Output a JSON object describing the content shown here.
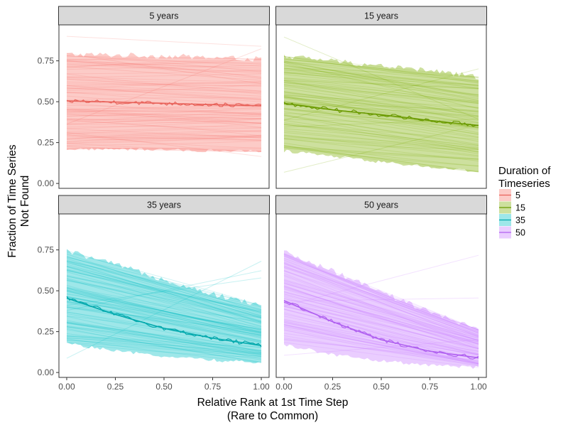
{
  "chart_data": {
    "type": "line",
    "facet_title_prefix": "Duration of Timeseries",
    "xlabel_line1": "Relative Rank at 1st Time Step",
    "xlabel_line2": "(Rare to Common)",
    "ylabel_line1": "Fraction of Time Series",
    "ylabel_line2": "Not Found",
    "legend_title_line1": "Duration of",
    "legend_title_line2": "Timeseries",
    "xlim": [
      -0.04,
      1.04
    ],
    "ylim": [
      -0.03,
      0.97
    ],
    "x_ticks": [
      0,
      0.25,
      0.5,
      0.75,
      1
    ],
    "x_tick_labels": [
      "0.00",
      "0.25",
      "0.50",
      "0.75",
      "1.00"
    ],
    "y_ticks": [
      0,
      0.25,
      0.5,
      0.75
    ],
    "y_tick_labels": [
      "0.00",
      "0.25",
      "0.50",
      "0.75"
    ],
    "grid": false,
    "legend_position": "right",
    "panels": [
      {
        "strip": "5 years",
        "legend_label": "5",
        "fill_color": "#F8766D",
        "line_color": "#E8625A",
        "x": [
          0,
          0.25,
          0.5,
          0.75,
          1
        ],
        "mean": [
          0.505,
          0.498,
          0.49,
          0.482,
          0.475
        ],
        "band_upper": [
          0.79,
          0.785,
          0.78,
          0.77,
          0.76
        ],
        "band_lower": [
          0.21,
          0.21,
          0.205,
          0.2,
          0.195
        ]
      },
      {
        "strip": "15 years",
        "legend_label": "15",
        "fill_color": "#7CAE00",
        "line_color": "#6A9A00",
        "x": [
          0,
          0.25,
          0.5,
          0.75,
          1
        ],
        "mean": [
          0.49,
          0.45,
          0.42,
          0.385,
          0.355
        ],
        "band_upper": [
          0.78,
          0.75,
          0.72,
          0.69,
          0.65
        ],
        "band_lower": [
          0.2,
          0.165,
          0.13,
          0.1,
          0.07
        ]
      },
      {
        "strip": "35 years",
        "legend_label": "35",
        "fill_color": "#00BFC4",
        "line_color": "#00A8AC",
        "x": [
          0,
          0.25,
          0.5,
          0.75,
          1
        ],
        "mean": [
          0.455,
          0.355,
          0.27,
          0.21,
          0.165
        ],
        "band_upper": [
          0.745,
          0.66,
          0.57,
          0.48,
          0.41
        ],
        "band_lower": [
          0.18,
          0.13,
          0.1,
          0.075,
          0.06
        ]
      },
      {
        "strip": "50 years",
        "legend_label": "50",
        "fill_color": "#C77CFF",
        "line_color": "#B060F0",
        "x": [
          0,
          0.25,
          0.5,
          0.75,
          1
        ],
        "mean": [
          0.44,
          0.31,
          0.2,
          0.13,
          0.09
        ],
        "band_upper": [
          0.735,
          0.62,
          0.49,
          0.37,
          0.26
        ],
        "band_lower": [
          0.17,
          0.11,
          0.07,
          0.045,
          0.03
        ]
      }
    ]
  }
}
